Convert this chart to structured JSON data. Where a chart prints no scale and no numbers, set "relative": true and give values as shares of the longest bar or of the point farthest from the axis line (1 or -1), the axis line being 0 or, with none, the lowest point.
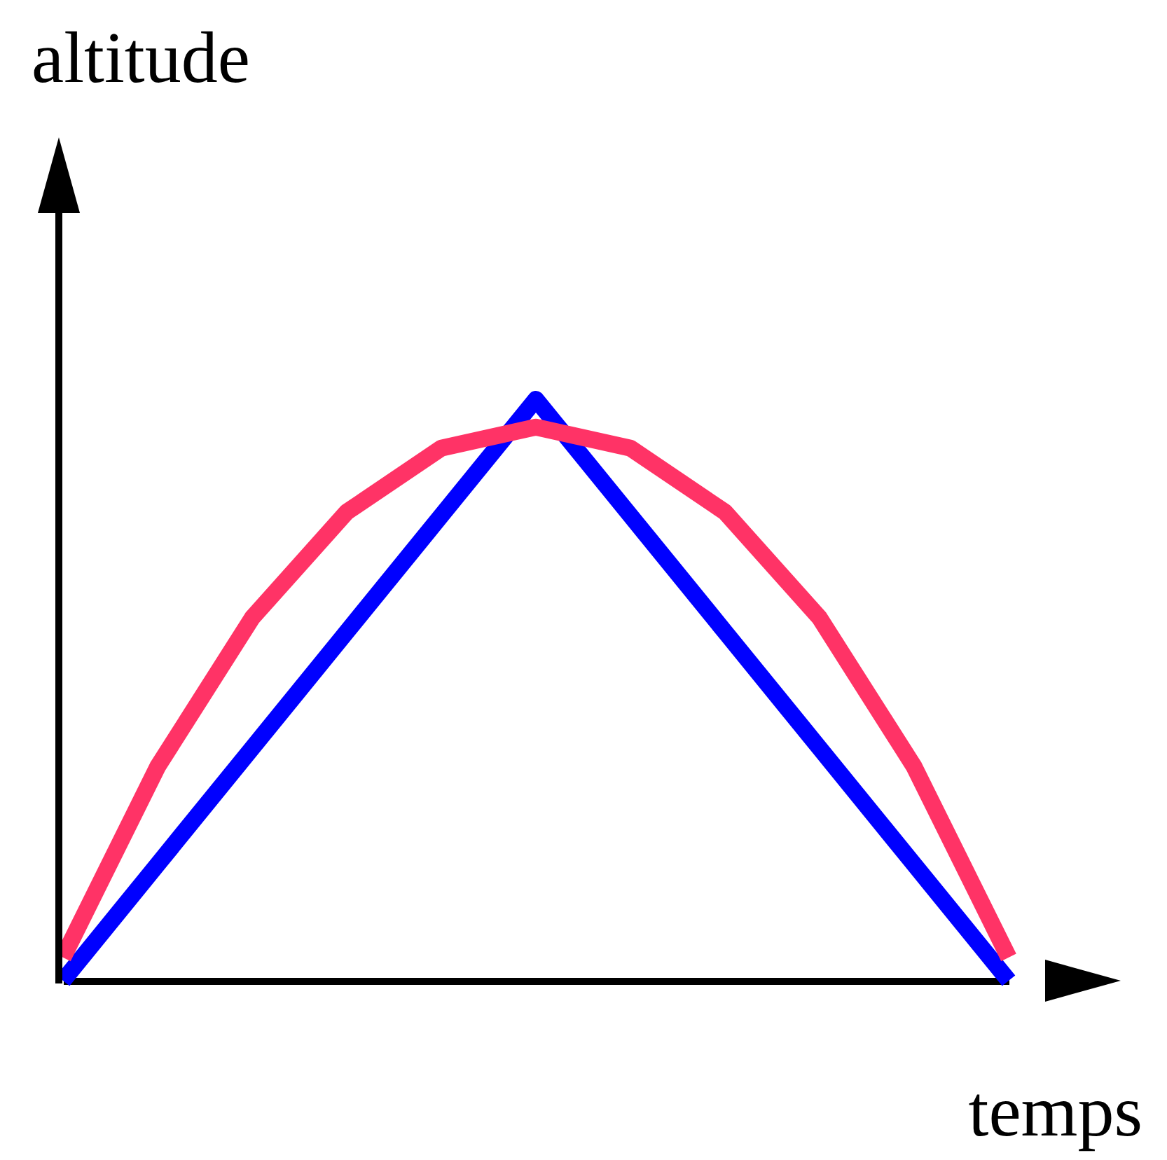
{
  "chart_data": {
    "type": "line",
    "xlabel": "temps",
    "ylabel": "altitude",
    "relative": true,
    "tick_labels": false,
    "categories": [
      null,
      null,
      null,
      null,
      null,
      null,
      null,
      null,
      null,
      null,
      null
    ],
    "series": [
      {
        "color": "#0000ff",
        "values": [
          0,
          0.2,
          0.4,
          0.6,
          0.8,
          1,
          0.8,
          0.6,
          0.4,
          0.2,
          0
        ]
      },
      {
        "color": "#ff3366",
        "values": [
          0.04,
          0.368,
          0.624,
          0.806,
          0.916,
          0.952,
          0.916,
          0.806,
          0.624,
          0.368,
          0.04
        ]
      }
    ]
  }
}
